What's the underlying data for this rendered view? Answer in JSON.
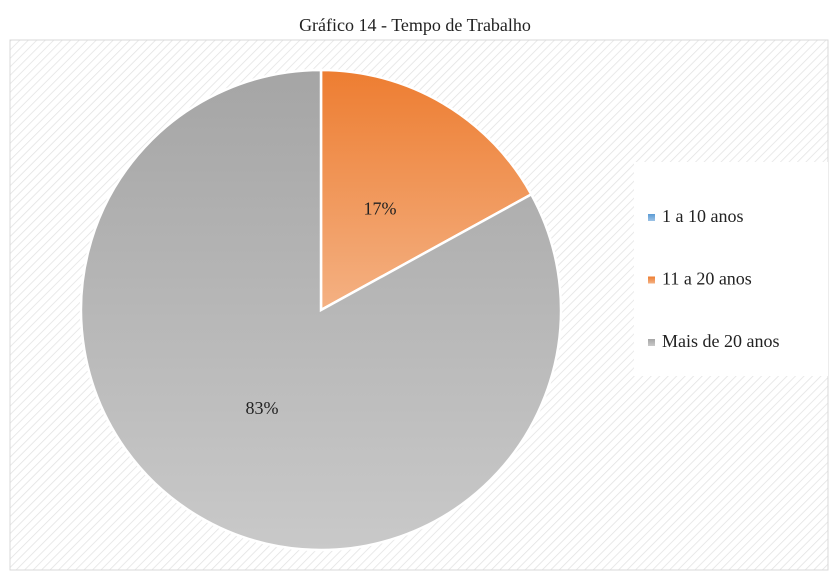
{
  "chart_data": {
    "type": "pie",
    "title": "Gráfico 14 - Tempo de Trabalho",
    "categories": [
      "1 a 10 anos",
      "11 a 20 anos",
      "Mais de 20 anos"
    ],
    "values": [
      0,
      17,
      83
    ],
    "value_labels": [
      null,
      "17%",
      "83%"
    ],
    "colors": [
      "#5b9bd5",
      "#ed7d31",
      "#a5a5a5"
    ],
    "legend": "right"
  }
}
